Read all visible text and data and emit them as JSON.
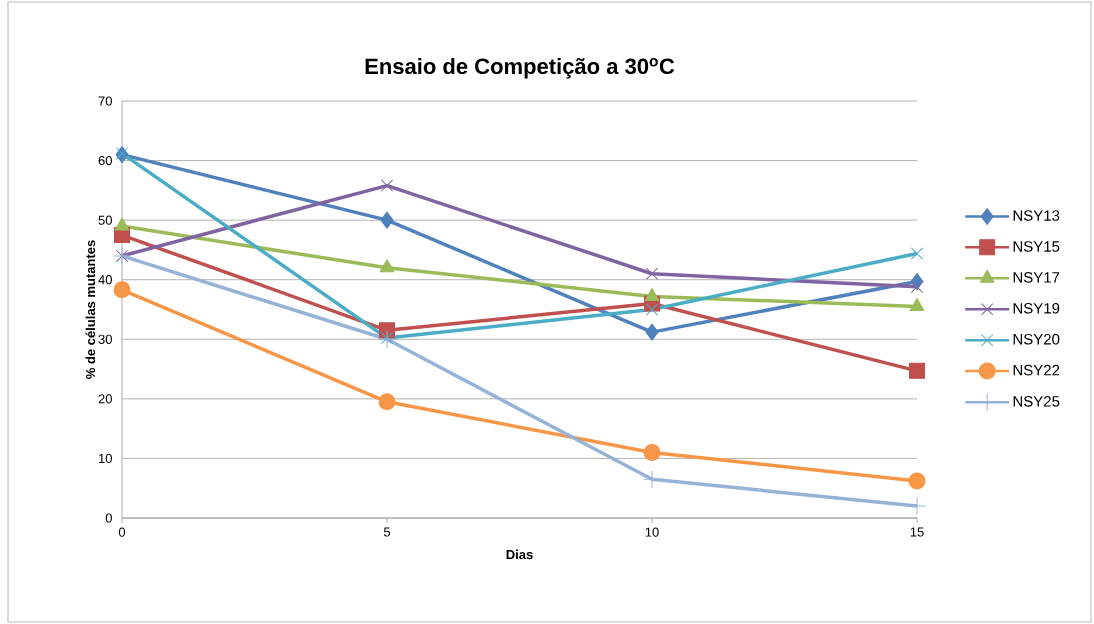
{
  "chart_data": {
    "type": "line",
    "title": "Ensaio de Competição a 30$^{o}$C",
    "xlabel": "Dias",
    "ylabel": "% de células mutantes",
    "x": [
      0,
      5,
      10,
      15
    ],
    "xlim": [
      0,
      15
    ],
    "ylim": [
      0,
      70
    ],
    "xticks": [
      0,
      5,
      10,
      15
    ],
    "yticks": [
      0,
      10,
      20,
      30,
      40,
      50,
      60,
      70
    ],
    "grid": "y",
    "legend": "right",
    "line_style": "solid",
    "series": [
      {
        "name": "NSY13",
        "color": "#4f81bd",
        "marker": "diamond",
        "values": [
          61,
          50,
          31.2,
          39.7
        ]
      },
      {
        "name": "NSY15",
        "color": "#c0504d",
        "marker": "square",
        "values": [
          47.5,
          31.5,
          36,
          24.7
        ]
      },
      {
        "name": "NSY17",
        "color": "#9bbb59",
        "marker": "triangle",
        "values": [
          49,
          42,
          37.2,
          35.5
        ]
      },
      {
        "name": "NSY19",
        "color": "#8064a2",
        "marker": "cross",
        "values": [
          44,
          55.8,
          41,
          38.8
        ]
      },
      {
        "name": "NSY20",
        "color": "#4bacc6",
        "marker": "cross",
        "values": [
          61.2,
          30.2,
          35,
          44.4
        ]
      },
      {
        "name": "NSY22",
        "color": "#f79646",
        "marker": "circle",
        "values": [
          38.3,
          19.5,
          11,
          6.2
        ]
      },
      {
        "name": "NSY25",
        "color": "#95b3d7",
        "marker": "plus",
        "values": [
          44,
          30,
          6.5,
          2
        ]
      }
    ]
  }
}
